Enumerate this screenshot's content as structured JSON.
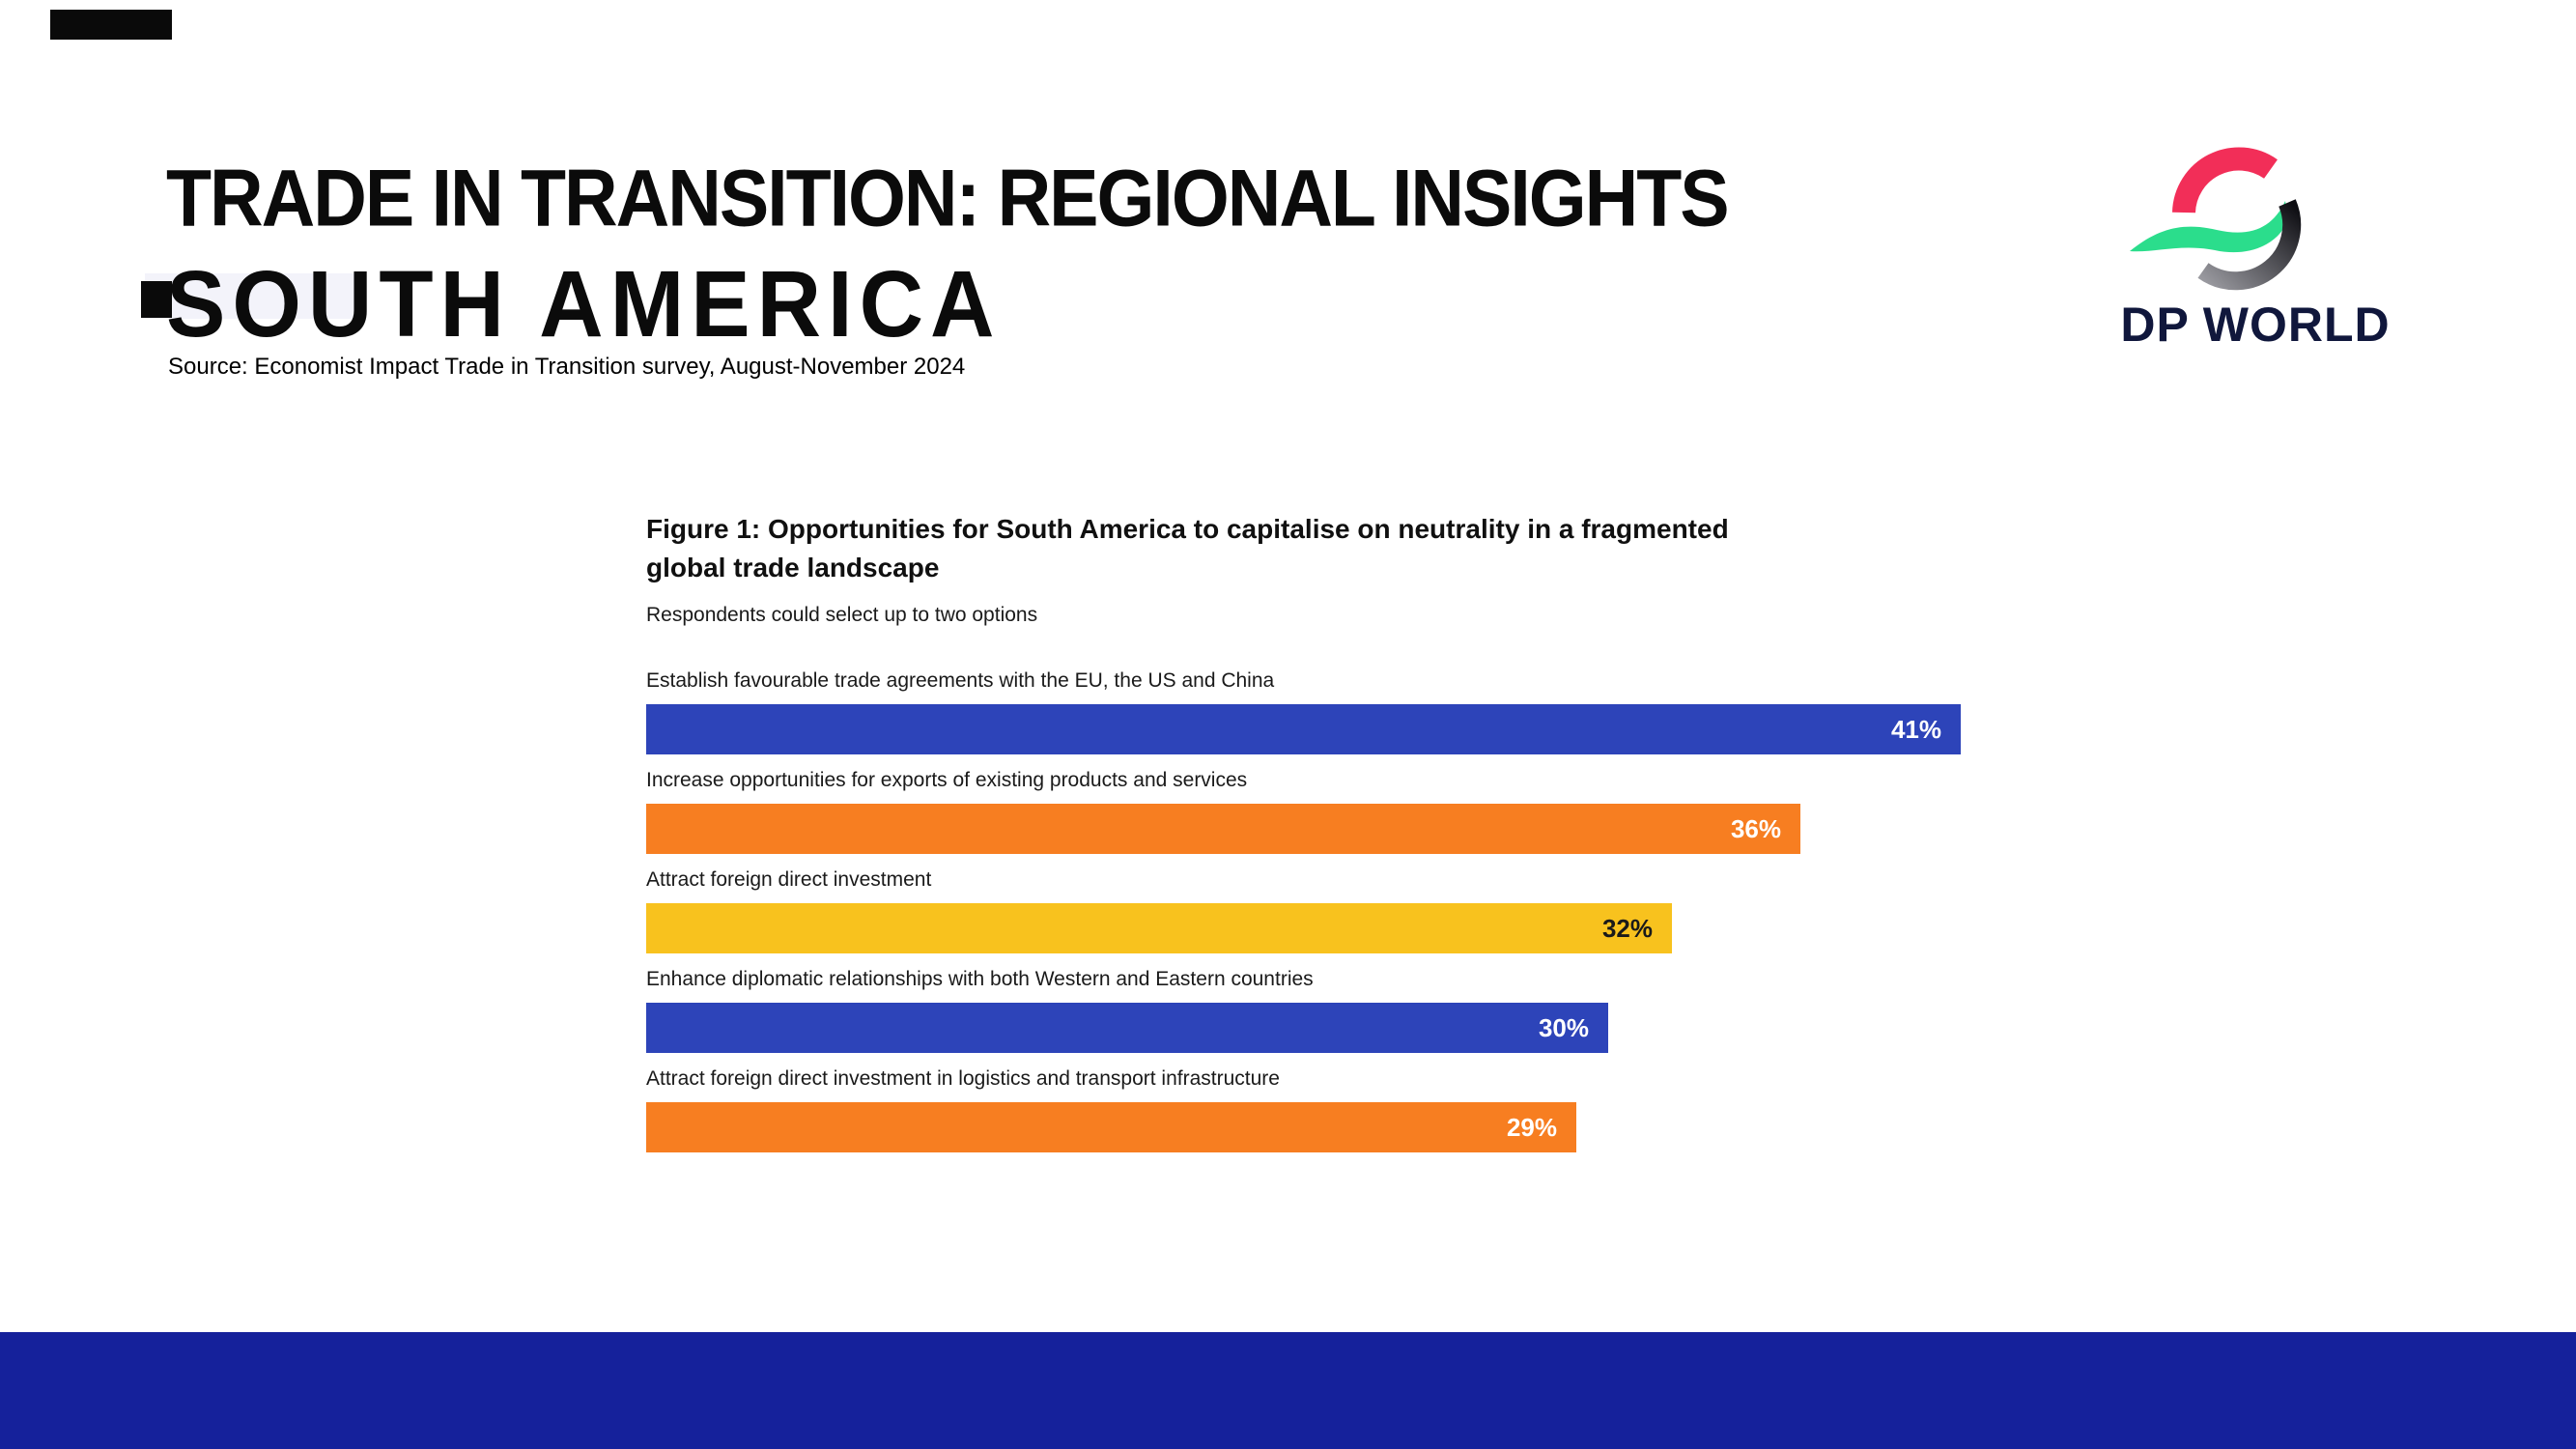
{
  "header": {
    "title": "TRADE IN TRANSITION: REGIONAL INSIGHTS",
    "region": "SOUTH AMERICA",
    "source": "Source: Economist Impact Trade in Transition survey, August-November 2024"
  },
  "logo": {
    "wordmark": "DP WORLD",
    "colors": {
      "pink": "#F22E58",
      "green": "#2BDD8C",
      "dark": "#0D0D12",
      "navy": "#10173C"
    }
  },
  "chart_data": {
    "type": "bar",
    "orientation": "horizontal",
    "title": "Figure 1: Opportunities for South America to capitalise on neutrality in a fragmented global trade landscape",
    "title_lines": [
      "Figure 1: Opportunities for South America to capitalise on neutrality in a fragmented",
      "global trade landscape"
    ],
    "subtitle": "Respondents could select up to two options",
    "categories": [
      "Establish favourable trade agreements with the EU, the US and China",
      "Increase opportunities for exports of existing products and services",
      "Attract foreign direct investment",
      "Enhance diplomatic relationships with both Western and Eastern countries",
      "Attract foreign direct investment in logistics and transport infrastructure"
    ],
    "values": [
      41,
      36,
      32,
      30,
      29
    ],
    "value_labels": [
      "41%",
      "36%",
      "32%",
      "30%",
      "29%"
    ],
    "value_suffix": "%",
    "bar_colors": [
      "#2D44B9",
      "#F77E21",
      "#F8C21E",
      "#2D44B9",
      "#F77E21"
    ],
    "value_label_colors": [
      "#FFFFFF",
      "#FFFFFF",
      "#1A1A1A",
      "#FFFFFF",
      "#FFFFFF"
    ],
    "xlim": [
      0,
      41
    ],
    "grid": false,
    "legend": "none",
    "value_position": "inside-right"
  },
  "footer": {
    "band_color": "#15219B"
  }
}
